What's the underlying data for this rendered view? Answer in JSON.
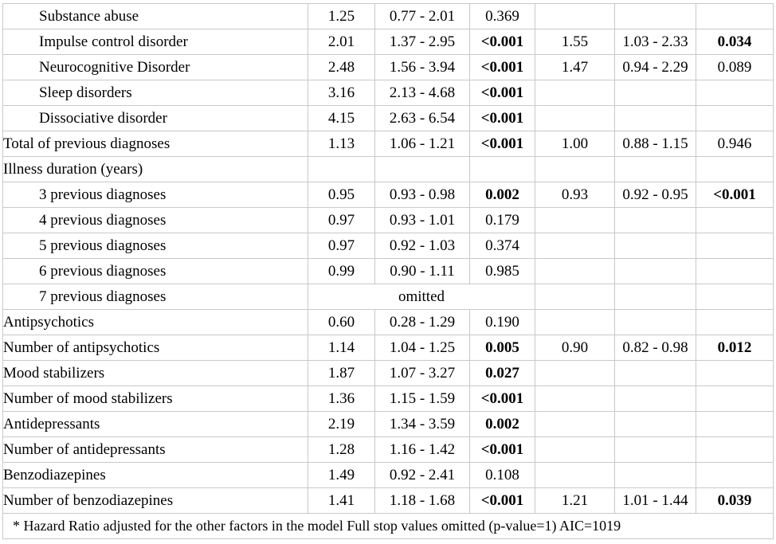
{
  "colors": {
    "border": "#c9c9c9",
    "text": "#000000",
    "background": "#ffffff"
  },
  "table": {
    "rows": [
      {
        "label": "Substance abuse",
        "indent": true,
        "u_hr": "1.25",
        "u_ci": "0.77 - 2.01",
        "u_p": "0.369",
        "u_p_bold": false,
        "m_hr": "",
        "m_ci": "",
        "m_p": "",
        "m_p_bold": false
      },
      {
        "label": "Impulse control disorder",
        "indent": true,
        "u_hr": "2.01",
        "u_ci": "1.37 - 2.95",
        "u_p": "<0.001",
        "u_p_bold": true,
        "m_hr": "1.55",
        "m_ci": "1.03 - 2.33",
        "m_p": "0.034",
        "m_p_bold": true
      },
      {
        "label": "Neurocognitive Disorder",
        "indent": true,
        "u_hr": "2.48",
        "u_ci": "1.56 - 3.94",
        "u_p": "<0.001",
        "u_p_bold": true,
        "m_hr": "1.47",
        "m_ci": "0.94 - 2.29",
        "m_p": "0.089",
        "m_p_bold": false
      },
      {
        "label": "Sleep disorders",
        "indent": true,
        "u_hr": "3.16",
        "u_ci": "2.13 - 4.68",
        "u_p": "<0.001",
        "u_p_bold": true,
        "m_hr": "",
        "m_ci": "",
        "m_p": "",
        "m_p_bold": false
      },
      {
        "label": "Dissociative disorder",
        "indent": true,
        "u_hr": "4.15",
        "u_ci": "2.63 - 6.54",
        "u_p": "<0.001",
        "u_p_bold": true,
        "m_hr": "",
        "m_ci": "",
        "m_p": "",
        "m_p_bold": false
      },
      {
        "label": "Total of previous diagnoses",
        "indent": false,
        "u_hr": "1.13",
        "u_ci": "1.06 - 1.21",
        "u_p": "<0.001",
        "u_p_bold": true,
        "m_hr": "1.00",
        "m_ci": "0.88 - 1.15",
        "m_p": "0.946",
        "m_p_bold": false
      },
      {
        "label": "Illness duration (years)",
        "indent": false,
        "u_hr": "",
        "u_ci": "",
        "u_p": "",
        "u_p_bold": false,
        "m_hr": "",
        "m_ci": "",
        "m_p": "",
        "m_p_bold": false
      },
      {
        "label": "3 previous diagnoses",
        "indent": true,
        "u_hr": "0.95",
        "u_ci": "0.93 - 0.98",
        "u_p": "0.002",
        "u_p_bold": true,
        "m_hr": "0.93",
        "m_ci": "0.92 - 0.95",
        "m_p": "<0.001",
        "m_p_bold": true
      },
      {
        "label": "4 previous diagnoses",
        "indent": true,
        "u_hr": "0.97",
        "u_ci": "0.93 - 1.01",
        "u_p": "0.179",
        "u_p_bold": false,
        "m_hr": "",
        "m_ci": "",
        "m_p": "",
        "m_p_bold": false
      },
      {
        "label": "5 previous diagnoses",
        "indent": true,
        "u_hr": "0.97",
        "u_ci": "0.92 - 1.03",
        "u_p": "0.374",
        "u_p_bold": false,
        "m_hr": "",
        "m_ci": "",
        "m_p": "",
        "m_p_bold": false
      },
      {
        "label": "6 previous diagnoses",
        "indent": true,
        "u_hr": "0.99",
        "u_ci": "0.90 - 1.11",
        "u_p": "0.985",
        "u_p_bold": false,
        "m_hr": "",
        "m_ci": "",
        "m_p": "",
        "m_p_bold": false
      },
      {
        "label": "7 previous diagnoses",
        "indent": true,
        "span_text": "omitted",
        "m_hr": "",
        "m_ci": "",
        "m_p": "",
        "m_p_bold": false
      },
      {
        "label": "Antipsychotics",
        "indent": false,
        "u_hr": "0.60",
        "u_ci": "0.28 - 1.29",
        "u_p": "0.190",
        "u_p_bold": false,
        "m_hr": "",
        "m_ci": "",
        "m_p": "",
        "m_p_bold": false
      },
      {
        "label": "Number of antipsychotics",
        "indent": false,
        "u_hr": "1.14",
        "u_ci": "1.04 - 1.25",
        "u_p": "0.005",
        "u_p_bold": true,
        "m_hr": "0.90",
        "m_ci": "0.82 - 0.98",
        "m_p": "0.012",
        "m_p_bold": true
      },
      {
        "label": "Mood stabilizers",
        "indent": false,
        "u_hr": "1.87",
        "u_ci": "1.07 - 3.27",
        "u_p": "0.027",
        "u_p_bold": true,
        "m_hr": "",
        "m_ci": "",
        "m_p": "",
        "m_p_bold": false
      },
      {
        "label": "Number of mood stabilizers",
        "indent": false,
        "u_hr": "1.36",
        "u_ci": "1.15 - 1.59",
        "u_p": "<0.001",
        "u_p_bold": true,
        "m_hr": "",
        "m_ci": "",
        "m_p": "",
        "m_p_bold": false
      },
      {
        "label": "Antidepressants",
        "indent": false,
        "u_hr": "2.19",
        "u_ci": "1.34 - 3.59",
        "u_p": "0.002",
        "u_p_bold": true,
        "m_hr": "",
        "m_ci": "",
        "m_p": "",
        "m_p_bold": false
      },
      {
        "label": "Number of antidepressants",
        "indent": false,
        "u_hr": "1.28",
        "u_ci": "1.16 - 1.42",
        "u_p": "<0.001",
        "u_p_bold": true,
        "m_hr": "",
        "m_ci": "",
        "m_p": "",
        "m_p_bold": false
      },
      {
        "label": "Benzodiazepines",
        "indent": false,
        "u_hr": "1.49",
        "u_ci": "0.92 - 2.41",
        "u_p": "0.108",
        "u_p_bold": false,
        "m_hr": "",
        "m_ci": "",
        "m_p": "",
        "m_p_bold": false
      },
      {
        "label": "Number of benzodiazepines",
        "indent": false,
        "u_hr": "1.41",
        "u_ci": "1.18 - 1.68",
        "u_p": "<0.001",
        "u_p_bold": true,
        "m_hr": "1.21",
        "m_ci": "1.01 - 1.44",
        "m_p": "0.039",
        "m_p_bold": true
      }
    ],
    "footnote": "* Hazard Ratio adjusted for the other factors in the model Full stop values omitted (p-value=1) AIC=1019"
  }
}
